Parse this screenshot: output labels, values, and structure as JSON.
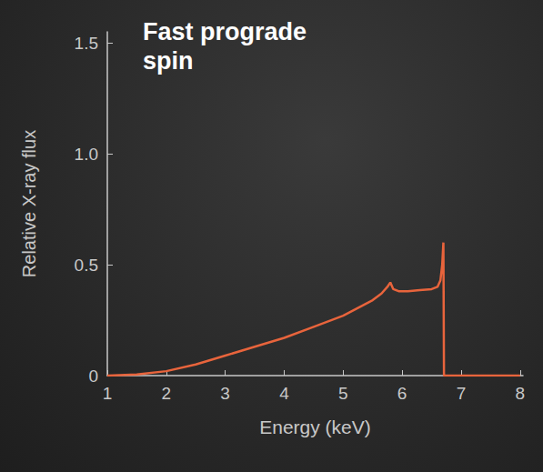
{
  "chart_data": {
    "type": "line",
    "title": "Fast prograde spin",
    "x_label": "Energy (keV)",
    "y_label": "Relative X-ray flux",
    "color": "#e8643c",
    "grid": false,
    "xlim": [
      1,
      8.05
    ],
    "xticks": [
      1,
      2,
      3,
      4,
      5,
      6,
      7,
      8
    ],
    "ylim": [
      0,
      1.55
    ],
    "yticks": [
      0,
      0.5,
      {
        "value": 1,
        "label": "1.0"
      },
      1.5
    ],
    "x": [
      1,
      1.5,
      2,
      2.5,
      3,
      3.5,
      4,
      4.5,
      5,
      5.25,
      5.5,
      5.65,
      5.75,
      5.8,
      5.85,
      5.95,
      6.1,
      6.3,
      6.5,
      6.6,
      6.65,
      6.68,
      6.7,
      6.71,
      7,
      7.5,
      8
    ],
    "values": [
      0,
      0.005,
      0.02,
      0.05,
      0.09,
      0.13,
      0.17,
      0.22,
      0.27,
      0.305,
      0.34,
      0.37,
      0.4,
      0.42,
      0.39,
      0.38,
      0.38,
      0.385,
      0.39,
      0.4,
      0.43,
      0.5,
      0.6,
      0,
      0,
      0,
      0
    ]
  }
}
